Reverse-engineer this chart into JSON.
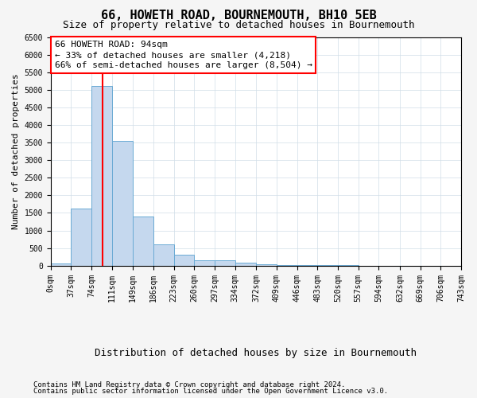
{
  "title": "66, HOWETH ROAD, BOURNEMOUTH, BH10 5EB",
  "subtitle": "Size of property relative to detached houses in Bournemouth",
  "xlabel": "Distribution of detached houses by size in Bournemouth",
  "ylabel": "Number of detached properties",
  "bin_edges": [
    0,
    37,
    74,
    111,
    149,
    186,
    223,
    260,
    297,
    334,
    372,
    409,
    446,
    483,
    520,
    557,
    594,
    632,
    669,
    706,
    743
  ],
  "bar_heights": [
    50,
    1620,
    5100,
    3550,
    1400,
    600,
    300,
    150,
    150,
    80,
    40,
    20,
    10,
    8,
    5,
    4,
    3,
    2,
    2,
    1
  ],
  "bar_color": "#c5d8ee",
  "bar_edge_color": "#6aaad4",
  "reference_line_x": 94,
  "reference_line_color": "red",
  "ylim": [
    0,
    6500
  ],
  "xlim": [
    0,
    743
  ],
  "annotation_text": "66 HOWETH ROAD: 94sqm\n← 33% of detached houses are smaller (4,218)\n66% of semi-detached houses are larger (8,504) →",
  "annotation_box_color": "white",
  "annotation_box_edge_color": "red",
  "footer_line1": "Contains HM Land Registry data © Crown copyright and database right 2024.",
  "footer_line2": "Contains public sector information licensed under the Open Government Licence v3.0.",
  "background_color": "#f5f5f5",
  "plot_background_color": "white",
  "grid_color": "#d0dde8",
  "title_fontsize": 11,
  "subtitle_fontsize": 9,
  "xlabel_fontsize": 9,
  "ylabel_fontsize": 8,
  "tick_fontsize": 7,
  "annot_fontsize": 8,
  "footer_fontsize": 6.5
}
